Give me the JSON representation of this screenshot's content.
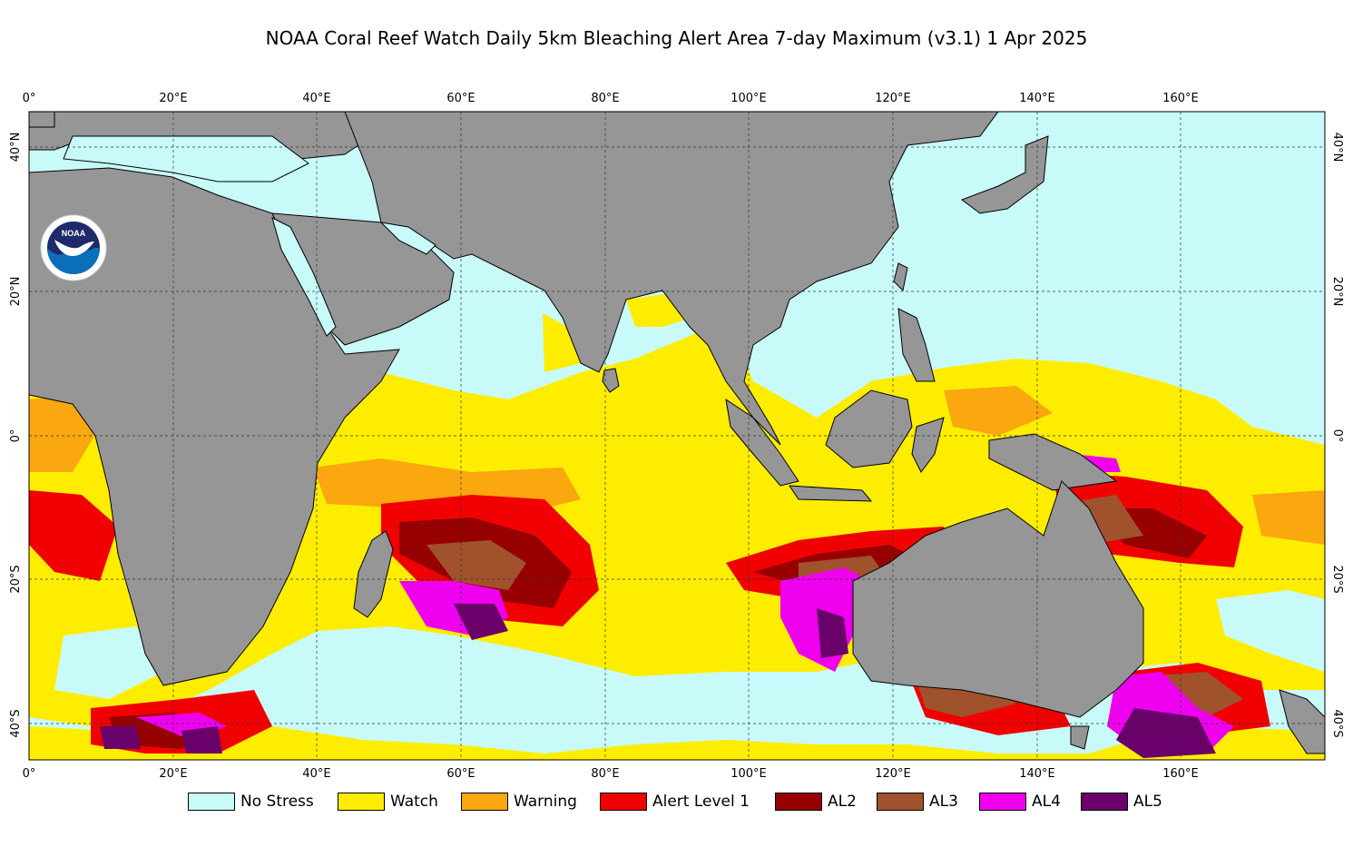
{
  "title": "NOAA Coral Reef Watch Daily 5km Bleaching Alert Area 7-day Maximum  (v3.1)   1 Apr 2025",
  "map": {
    "lon_range": [
      0,
      180
    ],
    "lat_range": [
      -45,
      45
    ],
    "graticule": "on",
    "top_ticks": [
      "0°",
      "20°E",
      "40°E",
      "60°E",
      "80°E",
      "100°E",
      "120°E",
      "140°E",
      "160°E"
    ],
    "bottom_ticks": [
      "0°",
      "20°E",
      "40°E",
      "60°E",
      "80°E",
      "100°E",
      "120°E",
      "140°E",
      "160°E"
    ],
    "left_ticks": [
      "40°N",
      "20°N",
      "0°",
      "20°S",
      "40°S"
    ],
    "right_ticks": [
      "40°N",
      "20°N",
      "0°",
      "20°S",
      "40°S"
    ],
    "colors": {
      "land": "#969696",
      "no_stress": "#c8fafa",
      "watch": "#ffed00",
      "warning": "#fba70f",
      "alert1": "#f00000",
      "al2": "#960000",
      "al3": "#a0522d",
      "al4": "#ee00ee",
      "al5": "#6a006a"
    }
  },
  "legend": [
    {
      "label": "No Stress",
      "color": "#c8fafa"
    },
    {
      "label": "Watch",
      "color": "#ffed00"
    },
    {
      "label": "Warning",
      "color": "#fba70f"
    },
    {
      "label": "Alert Level 1",
      "color": "#f00000"
    },
    {
      "label": "AL2",
      "color": "#960000"
    },
    {
      "label": "AL3",
      "color": "#a0522d"
    },
    {
      "label": "AL4",
      "color": "#ee00ee"
    },
    {
      "label": "AL5",
      "color": "#6a006a"
    }
  ],
  "logo": {
    "icon": "noaa-logo-icon",
    "text": "NOAA"
  }
}
